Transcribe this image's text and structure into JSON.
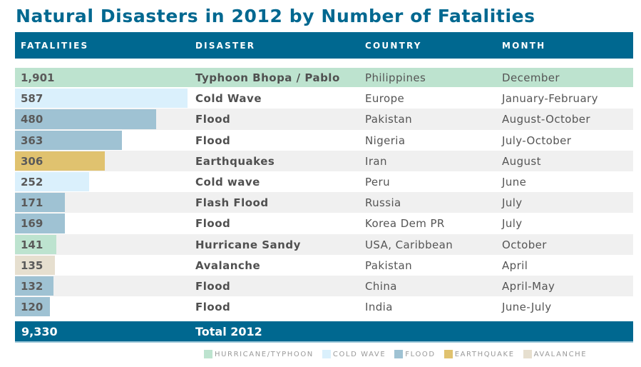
{
  "title": "Natural Disasters in 2012 by Number of Fatalities",
  "header": {
    "fatalities": "FATALITIES",
    "disaster": "DISASTER",
    "country": "COUNTRY",
    "month": "MONTH"
  },
  "colors": {
    "header_bg": "#006890",
    "hurricane_typhoon": "#bde3cf",
    "cold_wave": "#daf0fc",
    "flood": "#9fc2d3",
    "earthquake": "#e0c26f",
    "avalanche": "#e6dfcf",
    "alt_row": "#f0f0f0"
  },
  "rows": [
    {
      "fatalities": "1,901",
      "disaster": "Typhoon Bhopa / Pablo",
      "country": "Philippines",
      "month": "December",
      "type": "hurricane_typhoon"
    },
    {
      "fatalities": "587",
      "disaster": "Cold Wave",
      "country": "Europe",
      "month": "January-February",
      "type": "cold_wave"
    },
    {
      "fatalities": "480",
      "disaster": "Flood",
      "country": "Pakistan",
      "month": "August-October",
      "type": "flood"
    },
    {
      "fatalities": "363",
      "disaster": "Flood",
      "country": "Nigeria",
      "month": "July-October",
      "type": "flood"
    },
    {
      "fatalities": "306",
      "disaster": "Earthquakes",
      "country": "Iran",
      "month": "August",
      "type": "earthquake"
    },
    {
      "fatalities": "252",
      "disaster": "Cold wave",
      "country": "Peru",
      "month": "June",
      "type": "cold_wave"
    },
    {
      "fatalities": "171",
      "disaster": "Flash Flood",
      "country": "Russia",
      "month": "July",
      "type": "flood"
    },
    {
      "fatalities": "169",
      "disaster": "Flood",
      "country": "Korea Dem PR",
      "month": "July",
      "type": "flood"
    },
    {
      "fatalities": "141",
      "disaster": "Hurricane Sandy",
      "country": "USA, Caribbean",
      "month": "October",
      "type": "hurricane_typhoon"
    },
    {
      "fatalities": "135",
      "disaster": "Avalanche",
      "country": "Pakistan",
      "month": "April",
      "type": "avalanche"
    },
    {
      "fatalities": "132",
      "disaster": "Flood",
      "country": "China",
      "month": "April-May",
      "type": "flood"
    },
    {
      "fatalities": "120",
      "disaster": "Flood",
      "country": "India",
      "month": "June-July",
      "type": "flood"
    }
  ],
  "total": {
    "fatalities": "9,330",
    "label": "Total 2012"
  },
  "legend": [
    {
      "label": "HURRICANE/TYPHOON",
      "type": "hurricane_typhoon"
    },
    {
      "label": "COLD WAVE",
      "type": "cold_wave"
    },
    {
      "label": "FLOOD",
      "type": "flood"
    },
    {
      "label": "EARTHQUAKE",
      "type": "earthquake"
    },
    {
      "label": "AVALANCHE",
      "type": "avalanche"
    }
  ],
  "chart_data": {
    "type": "bar",
    "orientation": "horizontal",
    "title": "Natural Disasters in 2012 by Number of Fatalities",
    "categories": [
      "Typhoon Bhopa / Pablo (Philippines, December)",
      "Cold Wave (Europe, January-February)",
      "Flood (Pakistan, August-October)",
      "Flood (Nigeria, July-October)",
      "Earthquakes (Iran, August)",
      "Cold wave (Peru, June)",
      "Flash Flood (Russia, July)",
      "Flood (Korea Dem PR, July)",
      "Hurricane Sandy (USA, Caribbean, October)",
      "Avalanche (Pakistan, April)",
      "Flood (China, April-May)",
      "Flood (India, June-July)"
    ],
    "values": [
      1901,
      587,
      480,
      363,
      306,
      252,
      171,
      169,
      141,
      135,
      132,
      120
    ],
    "series_types": [
      "Hurricane/Typhoon",
      "Cold Wave",
      "Flood",
      "Flood",
      "Earthquake",
      "Cold Wave",
      "Flood",
      "Flood",
      "Hurricane/Typhoon",
      "Avalanche",
      "Flood",
      "Flood"
    ],
    "columns": [
      "FATALITIES",
      "DISASTER",
      "COUNTRY",
      "MONTH"
    ],
    "total": 9330,
    "total_label": "Total 2012",
    "legend": [
      "HURRICANE/TYPHOON",
      "COLD WAVE",
      "FLOOD",
      "EARTHQUAKE",
      "AVALANCHE"
    ],
    "legend_position": "bottom-right",
    "xlabel": "Fatalities",
    "ylabel": "",
    "grid": false
  }
}
